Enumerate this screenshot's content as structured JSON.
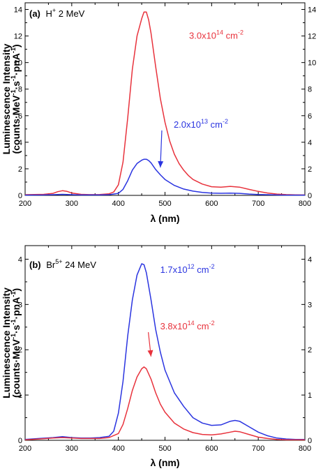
{
  "chart_data": [
    {
      "type": "line",
      "panel_tag": "(a)",
      "title_parts": {
        "ion": "H",
        "charge": "+",
        "energy": " 2 MeV"
      },
      "xlabel": "λ (nm)",
      "ylabel_line1": "Luminescence Intensity",
      "ylabel_line2": {
        "a": "(counts·MeV",
        "a_sup": "-1",
        "b": "·s",
        "b_sup": "-1",
        "c": "·pnA",
        "c_sup": "-1",
        "d": ")"
      },
      "xlim": [
        200,
        800
      ],
      "ylim": [
        0,
        14.5
      ],
      "xticks": [
        200,
        300,
        400,
        500,
        600,
        700,
        800
      ],
      "yticks": [
        0,
        2,
        4,
        6,
        8,
        10,
        12,
        14
      ],
      "grid": false,
      "series": [
        {
          "label_parts": {
            "mantissa": "3.0x10",
            "exp": "14",
            "unit": " cm",
            "unit_exp": "-2"
          },
          "color": "#e8323c",
          "x": [
            200,
            240,
            260,
            270,
            280,
            290,
            300,
            320,
            340,
            360,
            380,
            390,
            400,
            410,
            420,
            430,
            440,
            450,
            455,
            460,
            465,
            470,
            480,
            490,
            500,
            510,
            520,
            530,
            540,
            550,
            560,
            580,
            600,
            620,
            640,
            660,
            680,
            700,
            720,
            740,
            760,
            780,
            800
          ],
          "y": [
            0.05,
            0.08,
            0.15,
            0.28,
            0.35,
            0.3,
            0.18,
            0.08,
            0.06,
            0.07,
            0.12,
            0.25,
            0.8,
            2.5,
            5.8,
            9.5,
            12.0,
            13.3,
            13.8,
            13.8,
            13.2,
            12.2,
            9.7,
            7.3,
            5.5,
            4.1,
            3.1,
            2.4,
            1.9,
            1.5,
            1.2,
            0.85,
            0.65,
            0.62,
            0.68,
            0.62,
            0.45,
            0.3,
            0.18,
            0.1,
            0.06,
            0.04,
            0.03
          ],
          "annotation_arrow": false,
          "label_anchor": [
            610,
            11.8
          ]
        },
        {
          "label_parts": {
            "mantissa": "2.0x10",
            "exp": "13",
            "unit": " cm",
            "unit_exp": "-2"
          },
          "color": "#2a34e0",
          "x": [
            200,
            240,
            260,
            280,
            300,
            320,
            340,
            360,
            380,
            400,
            410,
            420,
            430,
            440,
            450,
            455,
            460,
            465,
            470,
            480,
            490,
            500,
            520,
            540,
            560,
            580,
            600,
            620,
            640,
            660,
            680,
            700,
            720,
            740,
            760,
            780,
            800
          ],
          "y": [
            0.02,
            0.03,
            0.05,
            0.08,
            0.05,
            0.03,
            0.03,
            0.03,
            0.05,
            0.15,
            0.45,
            1.1,
            1.9,
            2.4,
            2.65,
            2.72,
            2.72,
            2.62,
            2.45,
            1.95,
            1.55,
            1.2,
            0.75,
            0.48,
            0.32,
            0.22,
            0.17,
            0.16,
            0.17,
            0.15,
            0.1,
            0.07,
            0.05,
            0.03,
            0.02,
            0.02,
            0.02
          ],
          "annotation_arrow": true,
          "label_anchor": [
            577,
            5.1
          ],
          "arrow_target": [
            490,
            2.1
          ]
        }
      ]
    },
    {
      "type": "line",
      "panel_tag": "(b)",
      "title_parts": {
        "ion": "Br",
        "charge": "5+",
        "energy": " 24 MeV"
      },
      "xlabel": "λ (nm)",
      "ylabel_line1": "Luminescence Intensity",
      "ylabel_line2": {
        "a": "(counts·MeV",
        "a_sup": "-1",
        "b": "·s",
        "b_sup": "-1",
        "c": "·pnA",
        "c_sup": "-1",
        "d": ")"
      },
      "xlim": [
        200,
        800
      ],
      "ylim": [
        0,
        4.3
      ],
      "xticks": [
        200,
        300,
        400,
        500,
        600,
        700,
        800
      ],
      "yticks": [
        0,
        1,
        2,
        3,
        4
      ],
      "grid": false,
      "series": [
        {
          "label_parts": {
            "mantissa": "1.7x10",
            "exp": "12",
            "unit": " cm",
            "unit_exp": "-2"
          },
          "color": "#2a34e0",
          "x": [
            200,
            230,
            260,
            280,
            300,
            320,
            340,
            360,
            380,
            390,
            400,
            410,
            420,
            430,
            440,
            450,
            455,
            460,
            470,
            480,
            490,
            500,
            520,
            540,
            560,
            580,
            600,
            620,
            640,
            650,
            660,
            680,
            700,
            720,
            740,
            760,
            780,
            800
          ],
          "y": [
            0.02,
            0.04,
            0.06,
            0.08,
            0.06,
            0.05,
            0.05,
            0.06,
            0.09,
            0.2,
            0.6,
            1.3,
            2.3,
            3.1,
            3.65,
            3.9,
            3.88,
            3.7,
            3.1,
            2.45,
            1.95,
            1.55,
            1.05,
            0.75,
            0.5,
            0.38,
            0.33,
            0.34,
            0.42,
            0.44,
            0.42,
            0.3,
            0.18,
            0.1,
            0.05,
            0.03,
            0.02,
            0.02
          ],
          "annotation_arrow": false,
          "label_anchor": [
            548,
            3.7
          ]
        },
        {
          "label_parts": {
            "mantissa": "3.8x10",
            "exp": "14",
            "unit": " cm",
            "unit_exp": "-2"
          },
          "color": "#e8323c",
          "x": [
            200,
            230,
            260,
            280,
            300,
            320,
            340,
            360,
            380,
            400,
            410,
            420,
            430,
            440,
            450,
            455,
            460,
            470,
            480,
            490,
            500,
            520,
            540,
            560,
            580,
            600,
            620,
            640,
            650,
            660,
            680,
            700,
            720,
            740,
            760,
            780,
            800
          ],
          "y": [
            0.01,
            0.03,
            0.05,
            0.06,
            0.05,
            0.04,
            0.04,
            0.04,
            0.06,
            0.15,
            0.35,
            0.7,
            1.1,
            1.4,
            1.58,
            1.62,
            1.58,
            1.35,
            1.05,
            0.8,
            0.62,
            0.38,
            0.25,
            0.17,
            0.13,
            0.12,
            0.14,
            0.18,
            0.2,
            0.19,
            0.13,
            0.07,
            0.04,
            0.02,
            0.01,
            0.01,
            0.01
          ],
          "annotation_arrow": true,
          "label_anchor": [
            548,
            2.45
          ],
          "arrow_target": [
            470,
            1.85
          ]
        }
      ]
    }
  ]
}
